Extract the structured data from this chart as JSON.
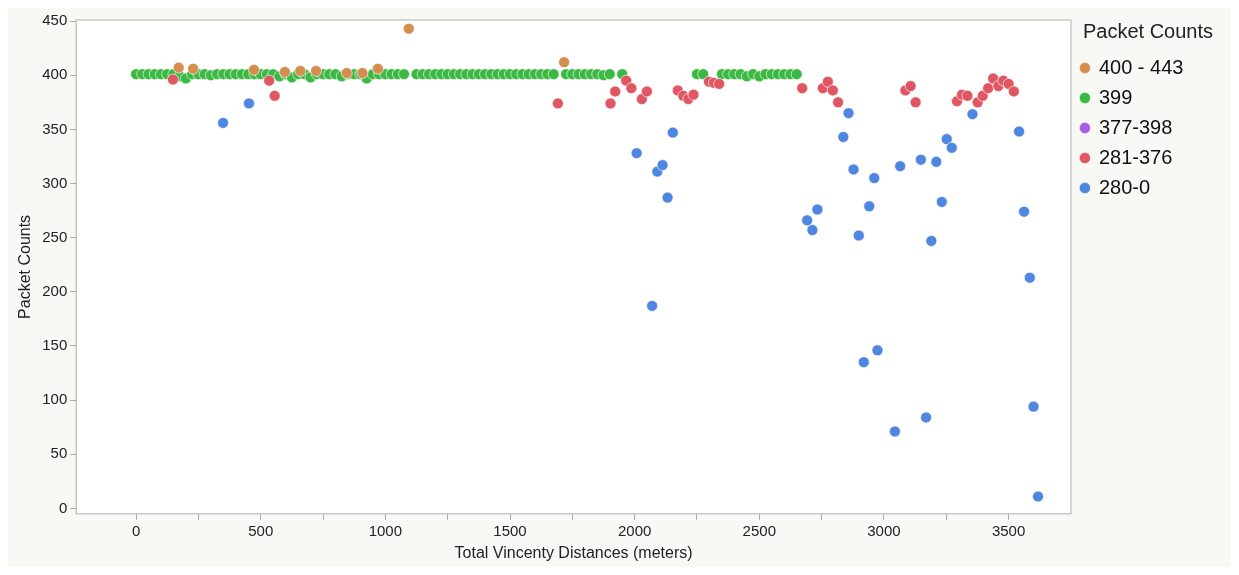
{
  "chart_data": {
    "type": "scatter",
    "xlabel": "Total Vincenty Distances (meters)",
    "ylabel": "Packet Counts",
    "legend_title": "Packet Counts",
    "legend": "right",
    "marker": "circle",
    "grid": false,
    "xlim": [
      -240,
      3750
    ],
    "ylim": [
      -5,
      451
    ],
    "xticks": [
      0,
      {
        "value": 250,
        "label": null
      },
      500,
      {
        "value": 750,
        "label": null
      },
      1000,
      {
        "value": 1250,
        "label": null
      },
      1500,
      {
        "value": 1750,
        "label": null
      },
      2000,
      {
        "value": 2250,
        "label": null
      },
      2500,
      {
        "value": 2750,
        "label": null
      },
      3000,
      {
        "value": 3250,
        "label": null
      },
      3500
    ],
    "yticks": [
      0,
      50,
      100,
      150,
      200,
      250,
      300,
      350,
      400,
      450
    ],
    "series": [
      {
        "name": "400 - 443",
        "color": "#d58e4f",
        "x": [
          171,
          229,
          473,
          597,
          659,
          722,
          845,
          908,
          970,
          1094,
          1717
        ],
        "values": [
          407,
          406,
          405,
          403,
          404,
          404,
          402,
          402,
          406,
          443,
          412
        ]
      },
      {
        "name": "399",
        "color": "#3cb943",
        "x": [
          0,
          25,
          50,
          75,
          100,
          125,
          150,
          175,
          200,
          225,
          250,
          275,
          300,
          325,
          350,
          375,
          400,
          425,
          450,
          475,
          500,
          525,
          550,
          575,
          600,
          625,
          650,
          675,
          700,
          725,
          750,
          775,
          800,
          825,
          850,
          875,
          900,
          925,
          950,
          975,
          1000,
          1025,
          1050,
          1075,
          1125,
          1150,
          1175,
          1200,
          1225,
          1250,
          1275,
          1300,
          1325,
          1350,
          1375,
          1400,
          1425,
          1450,
          1475,
          1500,
          1525,
          1550,
          1575,
          1600,
          1625,
          1650,
          1675,
          1725,
          1750,
          1775,
          1800,
          1825,
          1850,
          1875,
          1900,
          1950,
          2250,
          2275,
          2350,
          2375,
          2400,
          2425,
          2450,
          2475,
          2500,
          2525,
          2550,
          2575,
          2600,
          2625,
          2650
        ],
        "values": [
          401,
          401,
          401,
          401,
          401,
          401,
          401,
          399,
          397,
          401,
          401,
          401,
          400,
          401,
          401,
          401,
          401,
          401,
          401,
          401,
          401,
          401,
          401,
          399,
          401,
          398,
          401,
          401,
          398,
          401,
          401,
          401,
          401,
          399,
          401,
          401,
          401,
          397,
          401,
          401,
          401,
          401,
          401,
          401,
          401,
          401,
          401,
          401,
          401,
          401,
          401,
          401,
          401,
          401,
          401,
          401,
          401,
          401,
          401,
          401,
          401,
          401,
          401,
          401,
          401,
          401,
          401,
          401,
          401,
          401,
          401,
          401,
          401,
          400,
          401,
          401,
          401,
          401,
          401,
          401,
          401,
          401,
          399,
          401,
          399,
          401,
          401,
          401,
          401,
          401,
          401
        ]
      },
      {
        "name": "377-398",
        "color": "#a65de0"
      },
      {
        "name": "281-376",
        "color": "#e05663",
        "x": [
          148,
          534,
          556,
          1692,
          1903,
          1922,
          1966,
          1987,
          2029,
          2049,
          2173,
          2195,
          2215,
          2236,
          2298,
          2318,
          2339,
          2672,
          2755,
          2775,
          2795,
          2816,
          3086,
          3107,
          3127,
          3293,
          3313,
          3335,
          3376,
          3396,
          3418,
          3438,
          3459,
          3479,
          3500,
          3521
        ],
        "values": [
          396,
          395,
          381,
          374,
          374,
          385,
          395,
          388,
          378,
          385,
          386,
          381,
          378,
          382,
          394,
          393,
          392,
          388,
          388,
          394,
          386,
          375,
          386,
          390,
          375,
          376,
          382,
          381,
          375,
          381,
          388,
          397,
          390,
          395,
          392,
          385
        ]
      },
      {
        "name": "280-0",
        "color": "#4f86e0",
        "x": [
          349,
          453,
          2008,
          2070,
          2091,
          2112,
          2132,
          2153,
          2692,
          2713,
          2733,
          2837,
          2858,
          2878,
          2899,
          2919,
          2941,
          2961,
          2974,
          3044,
          3065,
          3148,
          3169,
          3190,
          3210,
          3232,
          3252,
          3272,
          3355,
          3542,
          3562,
          3585,
          3600,
          3618
        ],
        "values": [
          356,
          374,
          328,
          187,
          311,
          317,
          287,
          347,
          266,
          257,
          276,
          343,
          365,
          313,
          252,
          135,
          279,
          305,
          146,
          71,
          316,
          322,
          84,
          247,
          320,
          283,
          341,
          333,
          364,
          348,
          274,
          213,
          94,
          11
        ]
      }
    ]
  }
}
